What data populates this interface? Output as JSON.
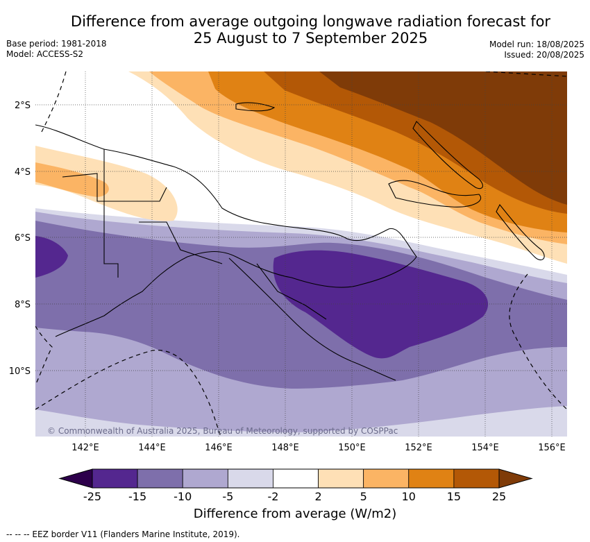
{
  "header": {
    "title_line1": "Difference from average outgoing longwave radiation forecast for",
    "title_line2": "25 August to 7 September 2025",
    "base_period": "Base period: 1981-2018",
    "model": "Model: ACCESS-S2",
    "model_run": "Model run: 18/08/2025",
    "issued": "Issued: 20/08/2025"
  },
  "map": {
    "copyright": "© Commonwealth of Australia 2025, Bureau of Meteorology, supported by COSPPac",
    "lat_labels": [
      "2°S",
      "4°S",
      "6°S",
      "8°S",
      "10°S"
    ],
    "lon_labels": [
      "142°E",
      "144°E",
      "146°E",
      "148°E",
      "150°E",
      "152°E",
      "154°E",
      "156°E"
    ],
    "gridlines": true
  },
  "colorbar": {
    "title": "Difference from average (W/m2)",
    "ticks": [
      "-25",
      "-15",
      "-10",
      "-5",
      "-2",
      "2",
      "5",
      "10",
      "15",
      "25"
    ],
    "colors": [
      "#54278f",
      "#7e6fab",
      "#afa8d0",
      "#d9d9ea",
      "#ffffff",
      "#fee0b6",
      "#fbb464",
      "#e08214",
      "#b35806"
    ],
    "under_color": "#2d004b",
    "over_color": "#7f3b08"
  },
  "footer": {
    "eez_note": "-- -- -- EEZ border V11 (Flanders Marine Institute, 2019)."
  }
}
